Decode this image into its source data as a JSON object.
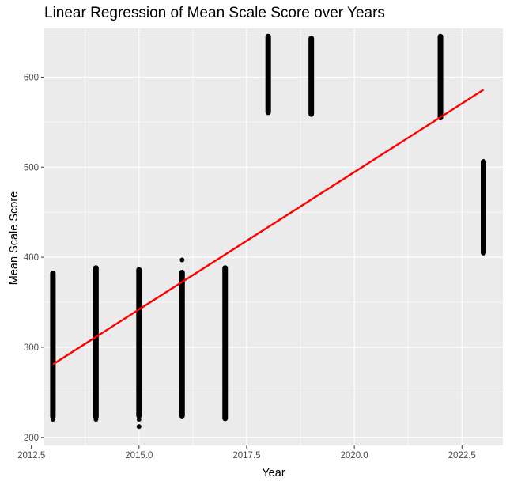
{
  "chart_data": {
    "type": "scatter",
    "title": "Linear Regression of Mean Scale Score over Years",
    "xlabel": "Year",
    "ylabel": "Mean Scale Score",
    "xlim": [
      2012.8,
      2023.45
    ],
    "ylim": [
      191,
      654
    ],
    "x_ticks": [
      2012.5,
      2015.0,
      2017.5,
      2020.0,
      2022.5
    ],
    "x_tick_labels": [
      "2012.5",
      "2015.0",
      "2017.5",
      "2020.0",
      "2022.5"
    ],
    "y_ticks": [
      200,
      300,
      400,
      500,
      600
    ],
    "y_tick_labels": [
      "200",
      "300",
      "400",
      "500",
      "600"
    ],
    "grid": true,
    "background": "#ebebeb",
    "point_color": "#000000",
    "line_color": "#ff0000",
    "point_ranges": [
      {
        "x": 2013,
        "min": 223,
        "max": 382,
        "outliers": [
          220
        ]
      },
      {
        "x": 2014,
        "min": 223,
        "max": 388,
        "outliers": [
          220
        ]
      },
      {
        "x": 2015,
        "min": 224,
        "max": 386,
        "outliers": [
          220,
          212
        ]
      },
      {
        "x": 2016,
        "min": 224,
        "max": 383,
        "outliers": [
          397
        ]
      },
      {
        "x": 2017,
        "min": 221,
        "max": 388,
        "outliers": []
      },
      {
        "x": 2018,
        "min": 561,
        "max": 645,
        "outliers": []
      },
      {
        "x": 2019,
        "min": 559,
        "max": 643,
        "outliers": []
      },
      {
        "x": 2022,
        "min": 555,
        "max": 645,
        "outliers": []
      },
      {
        "x": 2023,
        "min": 405,
        "max": 506,
        "outliers": []
      }
    ],
    "regression_line": {
      "x": [
        2013,
        2023
      ],
      "y": [
        281,
        586
      ]
    }
  }
}
